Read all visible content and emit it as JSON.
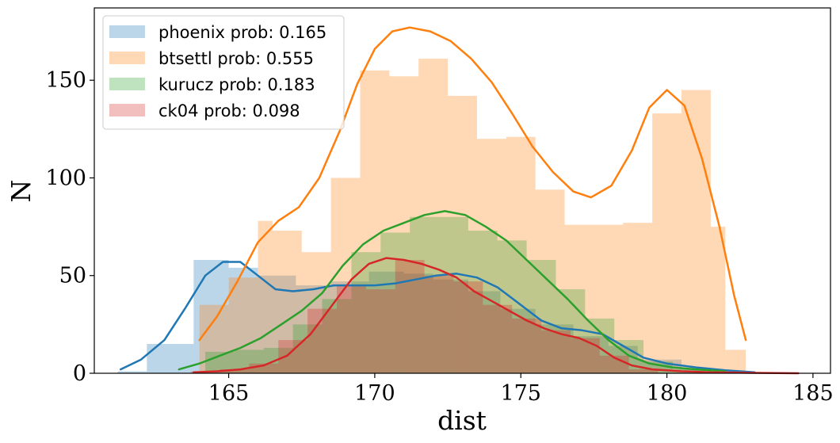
{
  "chart_data": {
    "type": "bar",
    "xlabel": "dist",
    "ylabel": "N",
    "xlim": [
      160.4,
      185.6
    ],
    "ylim": [
      0,
      187
    ],
    "xticks": [
      165,
      170,
      175,
      180,
      185
    ],
    "yticks": [
      0,
      50,
      100,
      150
    ],
    "grid": false,
    "legend_position": "top-left",
    "series": [
      {
        "name": "phoenix prob: 0.165",
        "color": "#1f77b4",
        "hist_bins": [
          [
            161.2,
            162.2,
            1
          ],
          [
            162.2,
            163.8,
            15
          ],
          [
            163.8,
            165.0,
            58
          ],
          [
            165.0,
            166.0,
            54
          ],
          [
            166.0,
            167.3,
            50
          ],
          [
            167.3,
            168.5,
            45
          ],
          [
            168.5,
            169.8,
            47
          ],
          [
            169.8,
            171.0,
            52
          ],
          [
            171.0,
            172.0,
            51
          ],
          [
            172.0,
            173.2,
            48
          ],
          [
            173.2,
            174.3,
            42
          ],
          [
            174.3,
            175.5,
            33
          ],
          [
            175.5,
            176.8,
            25
          ],
          [
            176.8,
            178.0,
            19
          ],
          [
            178.0,
            179.0,
            14
          ],
          [
            179.0,
            180.5,
            7
          ],
          [
            180.5,
            181.8,
            2
          ],
          [
            181.8,
            183.0,
            1
          ]
        ],
        "kde": [
          [
            161.3,
            2
          ],
          [
            162.0,
            7
          ],
          [
            162.8,
            17
          ],
          [
            163.5,
            33
          ],
          [
            164.2,
            50
          ],
          [
            164.8,
            57
          ],
          [
            165.4,
            57
          ],
          [
            166.0,
            50
          ],
          [
            166.6,
            43
          ],
          [
            167.2,
            42
          ],
          [
            167.9,
            43
          ],
          [
            168.6,
            45
          ],
          [
            169.3,
            45
          ],
          [
            170.0,
            45
          ],
          [
            170.7,
            46
          ],
          [
            171.4,
            48
          ],
          [
            172.1,
            50
          ],
          [
            172.8,
            51
          ],
          [
            173.5,
            49
          ],
          [
            174.2,
            44
          ],
          [
            175.0,
            35
          ],
          [
            175.7,
            27
          ],
          [
            176.4,
            23
          ],
          [
            177.1,
            22
          ],
          [
            177.8,
            20
          ],
          [
            178.5,
            14
          ],
          [
            179.2,
            8
          ],
          [
            180.0,
            5
          ],
          [
            181.0,
            3
          ],
          [
            182.0,
            1.5
          ],
          [
            183.0,
            0.5
          ]
        ]
      },
      {
        "name": "btsettl prob: 0.555",
        "color": "#ff7f0e",
        "hist_bins": [
          [
            164.0,
            165.0,
            35
          ],
          [
            165.0,
            166.0,
            49
          ],
          [
            166.0,
            166.5,
            78
          ],
          [
            166.5,
            167.5,
            73
          ],
          [
            167.5,
            168.5,
            62
          ],
          [
            168.5,
            169.5,
            100
          ],
          [
            169.5,
            170.5,
            155
          ],
          [
            170.5,
            171.5,
            152
          ],
          [
            171.5,
            172.5,
            161
          ],
          [
            172.5,
            173.5,
            142
          ],
          [
            173.5,
            174.5,
            120
          ],
          [
            174.5,
            175.5,
            121
          ],
          [
            175.5,
            176.5,
            94
          ],
          [
            176.5,
            177.5,
            76
          ],
          [
            177.5,
            178.5,
            76
          ],
          [
            178.5,
            179.5,
            77
          ],
          [
            179.5,
            180.5,
            133
          ],
          [
            180.5,
            181.5,
            145
          ],
          [
            181.5,
            182.0,
            75
          ],
          [
            182.0,
            182.7,
            12
          ]
        ],
        "kde": [
          [
            164.0,
            17
          ],
          [
            164.6,
            29
          ],
          [
            165.3,
            47
          ],
          [
            166.0,
            67
          ],
          [
            166.7,
            78
          ],
          [
            167.4,
            85
          ],
          [
            168.1,
            100
          ],
          [
            168.8,
            124
          ],
          [
            169.4,
            148
          ],
          [
            170.0,
            166
          ],
          [
            170.6,
            175
          ],
          [
            171.2,
            177
          ],
          [
            171.9,
            175
          ],
          [
            172.6,
            170
          ],
          [
            173.3,
            161
          ],
          [
            174.0,
            149
          ],
          [
            174.7,
            133
          ],
          [
            175.4,
            116
          ],
          [
            176.1,
            103
          ],
          [
            176.8,
            93
          ],
          [
            177.4,
            90
          ],
          [
            178.1,
            96
          ],
          [
            178.8,
            114
          ],
          [
            179.4,
            136
          ],
          [
            180.0,
            145
          ],
          [
            180.6,
            137
          ],
          [
            181.2,
            110
          ],
          [
            181.8,
            75
          ],
          [
            182.3,
            40
          ],
          [
            182.7,
            17
          ]
        ]
      },
      {
        "name": "kurucz prob: 0.183",
        "color": "#2ca02c",
        "hist_bins": [
          [
            164.2,
            165.2,
            11
          ],
          [
            165.2,
            166.2,
            12
          ],
          [
            166.2,
            167.2,
            13
          ],
          [
            167.2,
            168.2,
            25
          ],
          [
            168.2,
            169.2,
            38
          ],
          [
            169.2,
            170.2,
            62
          ],
          [
            170.2,
            171.2,
            72
          ],
          [
            171.2,
            172.2,
            80
          ],
          [
            172.2,
            173.2,
            80
          ],
          [
            173.2,
            174.2,
            73
          ],
          [
            174.2,
            175.2,
            68
          ],
          [
            175.2,
            176.2,
            58
          ],
          [
            176.2,
            177.2,
            43
          ],
          [
            177.2,
            178.2,
            28
          ],
          [
            178.2,
            179.2,
            17
          ],
          [
            179.2,
            180.2,
            6
          ],
          [
            180.2,
            181.2,
            2
          ]
        ],
        "kde": [
          [
            163.3,
            2
          ],
          [
            164.0,
            5
          ],
          [
            164.7,
            9
          ],
          [
            165.4,
            13
          ],
          [
            166.1,
            18
          ],
          [
            166.8,
            25
          ],
          [
            167.5,
            32
          ],
          [
            168.2,
            41
          ],
          [
            168.9,
            55
          ],
          [
            169.6,
            66
          ],
          [
            170.3,
            73
          ],
          [
            171.0,
            77
          ],
          [
            171.7,
            81
          ],
          [
            172.4,
            83
          ],
          [
            173.1,
            81
          ],
          [
            173.8,
            75
          ],
          [
            174.5,
            68
          ],
          [
            175.2,
            58
          ],
          [
            175.9,
            48
          ],
          [
            176.6,
            38
          ],
          [
            177.3,
            27
          ],
          [
            178.0,
            17
          ],
          [
            178.7,
            9
          ],
          [
            179.4,
            5
          ],
          [
            180.2,
            3
          ],
          [
            181.0,
            2
          ],
          [
            182.0,
            1
          ]
        ]
      },
      {
        "name": "ck04 prob: 0.098",
        "color": "#d62728",
        "hist_bins": [
          [
            163.7,
            164.7,
            1
          ],
          [
            164.7,
            165.7,
            2
          ],
          [
            165.7,
            166.7,
            5
          ],
          [
            166.7,
            167.7,
            17
          ],
          [
            167.7,
            168.7,
            33
          ],
          [
            168.7,
            169.7,
            45
          ],
          [
            169.7,
            170.7,
            43
          ],
          [
            170.7,
            171.7,
            58
          ],
          [
            171.7,
            172.7,
            50
          ],
          [
            172.7,
            173.7,
            47
          ],
          [
            173.7,
            174.7,
            35
          ],
          [
            174.7,
            175.7,
            28
          ],
          [
            175.7,
            176.7,
            22
          ],
          [
            176.7,
            177.7,
            18
          ],
          [
            177.7,
            178.7,
            9
          ],
          [
            178.7,
            179.7,
            2
          ]
        ],
        "kde": [
          [
            163.8,
            0.5
          ],
          [
            164.6,
            1
          ],
          [
            165.4,
            2
          ],
          [
            166.2,
            4
          ],
          [
            167.0,
            9
          ],
          [
            167.8,
            20
          ],
          [
            168.5,
            34
          ],
          [
            169.2,
            48
          ],
          [
            169.8,
            56
          ],
          [
            170.4,
            59
          ],
          [
            171.0,
            58
          ],
          [
            171.6,
            56
          ],
          [
            172.2,
            53
          ],
          [
            172.8,
            49
          ],
          [
            173.4,
            42
          ],
          [
            174.0,
            37
          ],
          [
            174.6,
            32
          ],
          [
            175.2,
            27
          ],
          [
            175.8,
            23
          ],
          [
            176.4,
            20
          ],
          [
            177.0,
            18
          ],
          [
            177.6,
            14
          ],
          [
            178.2,
            8
          ],
          [
            178.8,
            4
          ],
          [
            179.5,
            2
          ],
          [
            180.5,
            1
          ],
          [
            181.5,
            0.5
          ],
          [
            183.0,
            0.2
          ],
          [
            184.5,
            0
          ]
        ]
      }
    ]
  }
}
